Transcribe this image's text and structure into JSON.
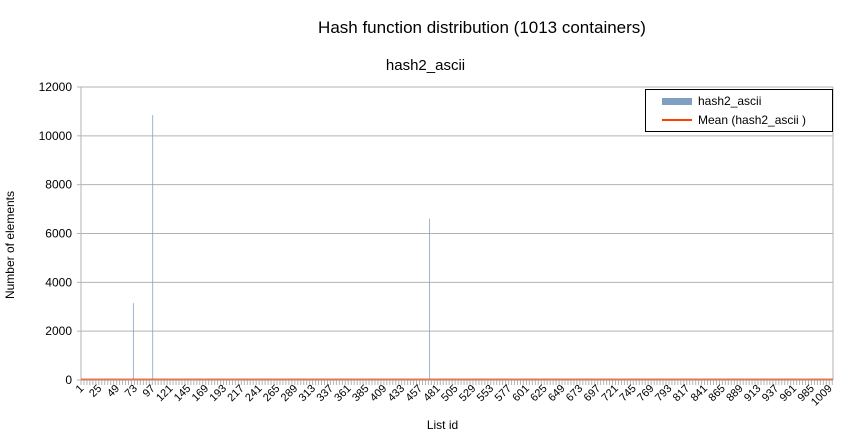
{
  "chart_data": {
    "type": "bar",
    "title": "Hash function distribution (1013 containers)",
    "subtitle": "hash2_ascii",
    "xlabel": "List id",
    "ylabel": "Number of elements",
    "ylim": [
      0,
      12000
    ],
    "yticks": [
      "0",
      "2000",
      "4000",
      "6000",
      "8000",
      "10000",
      "12000"
    ],
    "x_count": 1013,
    "xtick_labels": [
      "1",
      "25",
      "49",
      "73",
      "97",
      "121",
      "145",
      "169",
      "193",
      "217",
      "241",
      "265",
      "289",
      "313",
      "337",
      "361",
      "385",
      "409",
      "433",
      "457",
      "481",
      "505",
      "529",
      "553",
      "577",
      "601",
      "625",
      "649",
      "673",
      "697",
      "721",
      "745",
      "769",
      "793",
      "817",
      "841",
      "865",
      "889",
      "913",
      "937",
      "961",
      "985",
      "1009"
    ],
    "series": [
      {
        "name": "hash2_ascii",
        "type": "bar",
        "color": "#7f9fc0",
        "nonzero_points": [
          {
            "x": 71,
            "y": 3150
          },
          {
            "x": 97,
            "y": 10850
          },
          {
            "x": 470,
            "y": 6600
          }
        ]
      },
      {
        "name": "Mean (hash2_ascii )",
        "type": "line",
        "color": "#ff4000",
        "value": 13
      }
    ],
    "grid": "y-major",
    "legend": "top-right"
  }
}
